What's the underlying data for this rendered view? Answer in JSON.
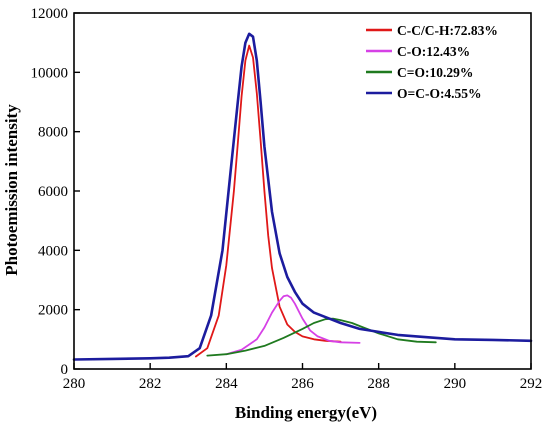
{
  "chart_data": {
    "type": "line",
    "xlabel": "Binding energy(eV)",
    "ylabel": "Photoemission intensity",
    "xlim": [
      280,
      292
    ],
    "ylim": [
      0,
      12000
    ],
    "xticks": [
      280,
      282,
      284,
      286,
      288,
      290,
      292
    ],
    "yticks": [
      0,
      2000,
      4000,
      6000,
      8000,
      10000,
      12000
    ],
    "grid": false,
    "legend_position": "top-right",
    "series": [
      {
        "name": "C-C/C-H:72.83%",
        "color": "#e01818",
        "x": [
          283.2,
          283.5,
          283.8,
          284.0,
          284.2,
          284.3,
          284.4,
          284.5,
          284.6,
          284.7,
          284.8,
          284.9,
          285.0,
          285.1,
          285.2,
          285.4,
          285.6,
          285.8,
          286.0,
          286.3,
          286.6,
          287.0
        ],
        "values": [
          420,
          700,
          1800,
          3500,
          6000,
          7600,
          9200,
          10400,
          10900,
          10500,
          9300,
          7700,
          6000,
          4500,
          3400,
          2100,
          1500,
          1250,
          1100,
          1000,
          950,
          920
        ]
      },
      {
        "name": "C-O:12.43%",
        "color": "#d641e6",
        "x": [
          284.0,
          284.4,
          284.8,
          285.0,
          285.2,
          285.4,
          285.5,
          285.6,
          285.7,
          285.8,
          286.0,
          286.2,
          286.4,
          286.7,
          287.0,
          287.5
        ],
        "values": [
          500,
          650,
          1000,
          1400,
          1900,
          2300,
          2450,
          2480,
          2400,
          2200,
          1700,
          1300,
          1100,
          950,
          900,
          880
        ]
      },
      {
        "name": "C=O:10.29%",
        "color": "#1f7a1f",
        "x": [
          283.5,
          284.0,
          284.5,
          285.0,
          285.5,
          286.0,
          286.3,
          286.6,
          286.8,
          287.0,
          287.3,
          287.6,
          288.0,
          288.5,
          289.0,
          289.5
        ],
        "values": [
          450,
          500,
          620,
          780,
          1050,
          1350,
          1550,
          1680,
          1700,
          1650,
          1550,
          1400,
          1200,
          1000,
          920,
          900
        ]
      },
      {
        "name": "O=C-O:4.55%",
        "color": "#1c1c9e",
        "x": [
          280.0,
          281.0,
          282.0,
          282.5,
          283.0,
          283.3,
          283.6,
          283.9,
          284.1,
          284.3,
          284.4,
          284.5,
          284.6,
          284.7,
          284.8,
          284.9,
          285.0,
          285.2,
          285.4,
          285.6,
          285.8,
          286.0,
          286.3,
          286.6,
          287.0,
          287.5,
          288.0,
          288.5,
          289.0,
          290.0,
          291.0,
          292.0
        ],
        "values": [
          320,
          340,
          360,
          380,
          430,
          700,
          1800,
          4000,
          6500,
          9000,
          10200,
          11000,
          11300,
          11200,
          10400,
          9000,
          7500,
          5300,
          3900,
          3100,
          2600,
          2200,
          1900,
          1750,
          1550,
          1350,
          1250,
          1150,
          1100,
          1000,
          980,
          950
        ]
      }
    ]
  }
}
